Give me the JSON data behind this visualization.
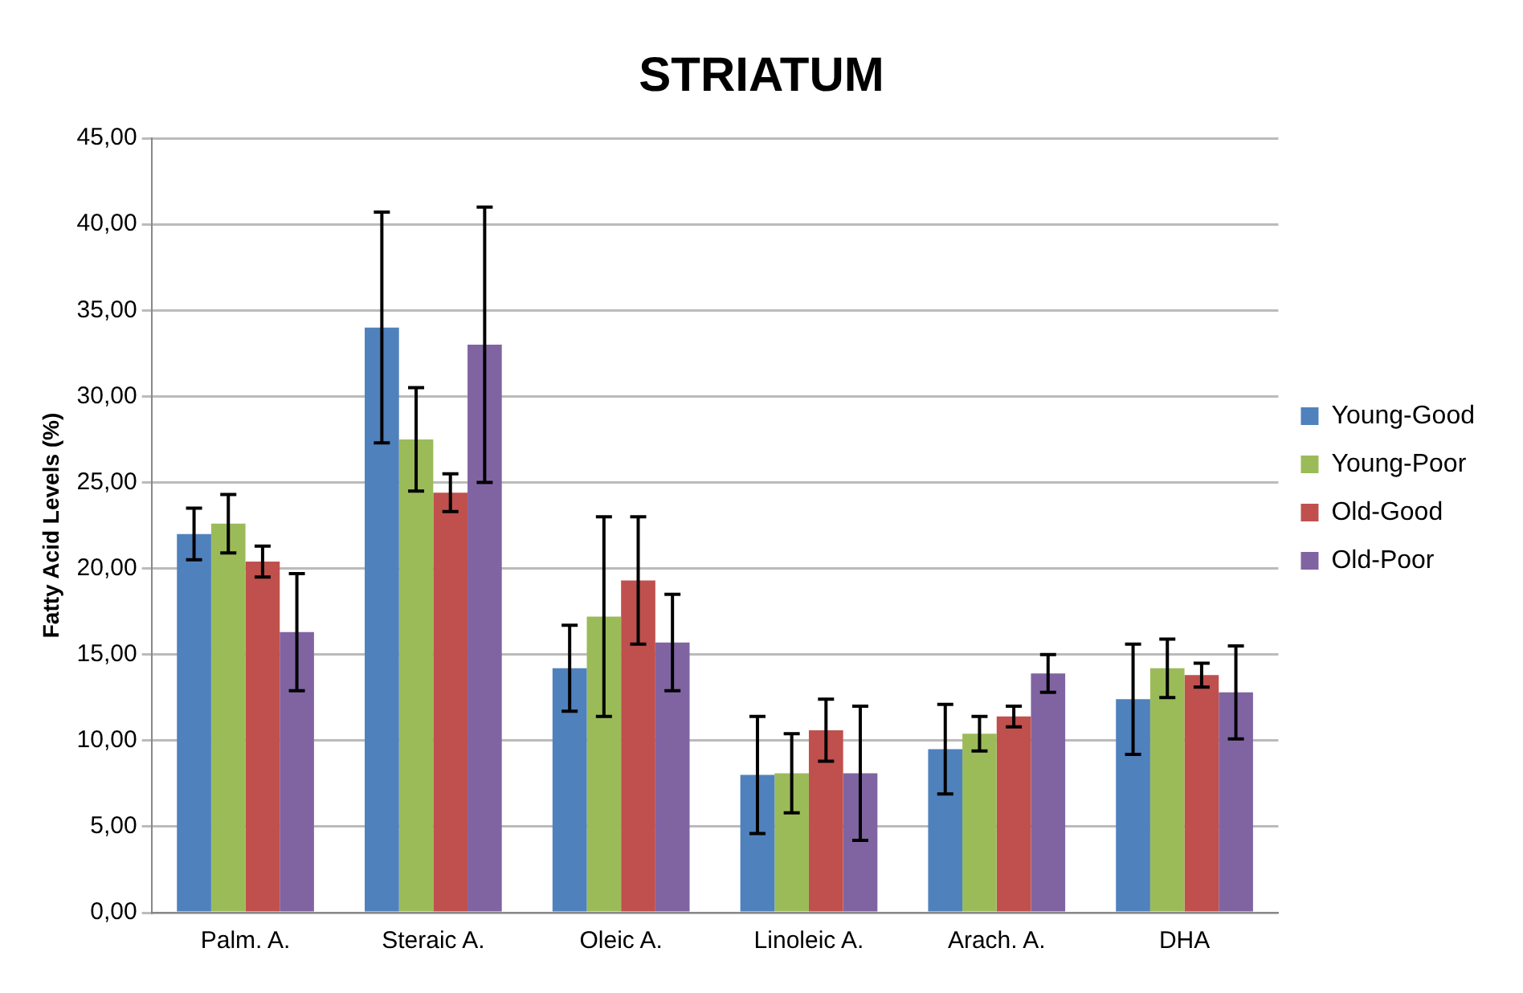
{
  "chart_data": {
    "type": "bar",
    "title": "STRIATUM",
    "ylabel": "Fatty Acid Levels (%)",
    "categories": [
      "Palm. A.",
      "Steraic A.",
      "Oleic A.",
      "Linoleic A.",
      "Arach. A.",
      "DHA"
    ],
    "series": [
      {
        "name": "Young-Good",
        "color": "#4f81bd",
        "values": [
          22.0,
          34.0,
          14.2,
          8.0,
          9.5,
          12.4
        ],
        "errors": [
          1.5,
          6.7,
          2.5,
          3.4,
          2.6,
          3.2
        ]
      },
      {
        "name": "Young-Poor",
        "color": "#9bbb59",
        "values": [
          22.6,
          27.5,
          17.2,
          8.1,
          10.4,
          14.2
        ],
        "errors": [
          1.7,
          3.0,
          5.8,
          2.3,
          1.0,
          1.7
        ]
      },
      {
        "name": "Old-Good",
        "color": "#c0504d",
        "values": [
          20.4,
          24.4,
          19.3,
          10.6,
          11.4,
          13.8
        ],
        "errors": [
          0.9,
          1.1,
          3.7,
          1.8,
          0.6,
          0.7
        ]
      },
      {
        "name": "Old-Poor",
        "color": "#8064a2",
        "values": [
          16.3,
          33.0,
          15.7,
          8.1,
          13.9,
          12.8
        ],
        "errors": [
          3.4,
          8.0,
          2.8,
          3.9,
          1.1,
          2.7
        ]
      }
    ],
    "ylim": [
      0,
      45
    ],
    "yticks": [
      {
        "value": 0,
        "label": "0,00"
      },
      {
        "value": 5,
        "label": "5,00"
      },
      {
        "value": 10,
        "label": "10,00"
      },
      {
        "value": 15,
        "label": "15,00"
      },
      {
        "value": 20,
        "label": "20,00"
      },
      {
        "value": 25,
        "label": "25,00"
      },
      {
        "value": 30,
        "label": "30,00"
      },
      {
        "value": 35,
        "label": "35,00"
      },
      {
        "value": 40,
        "label": "40,00"
      },
      {
        "value": 45,
        "label": "45,00"
      }
    ],
    "grid": "y",
    "legend": "right"
  }
}
